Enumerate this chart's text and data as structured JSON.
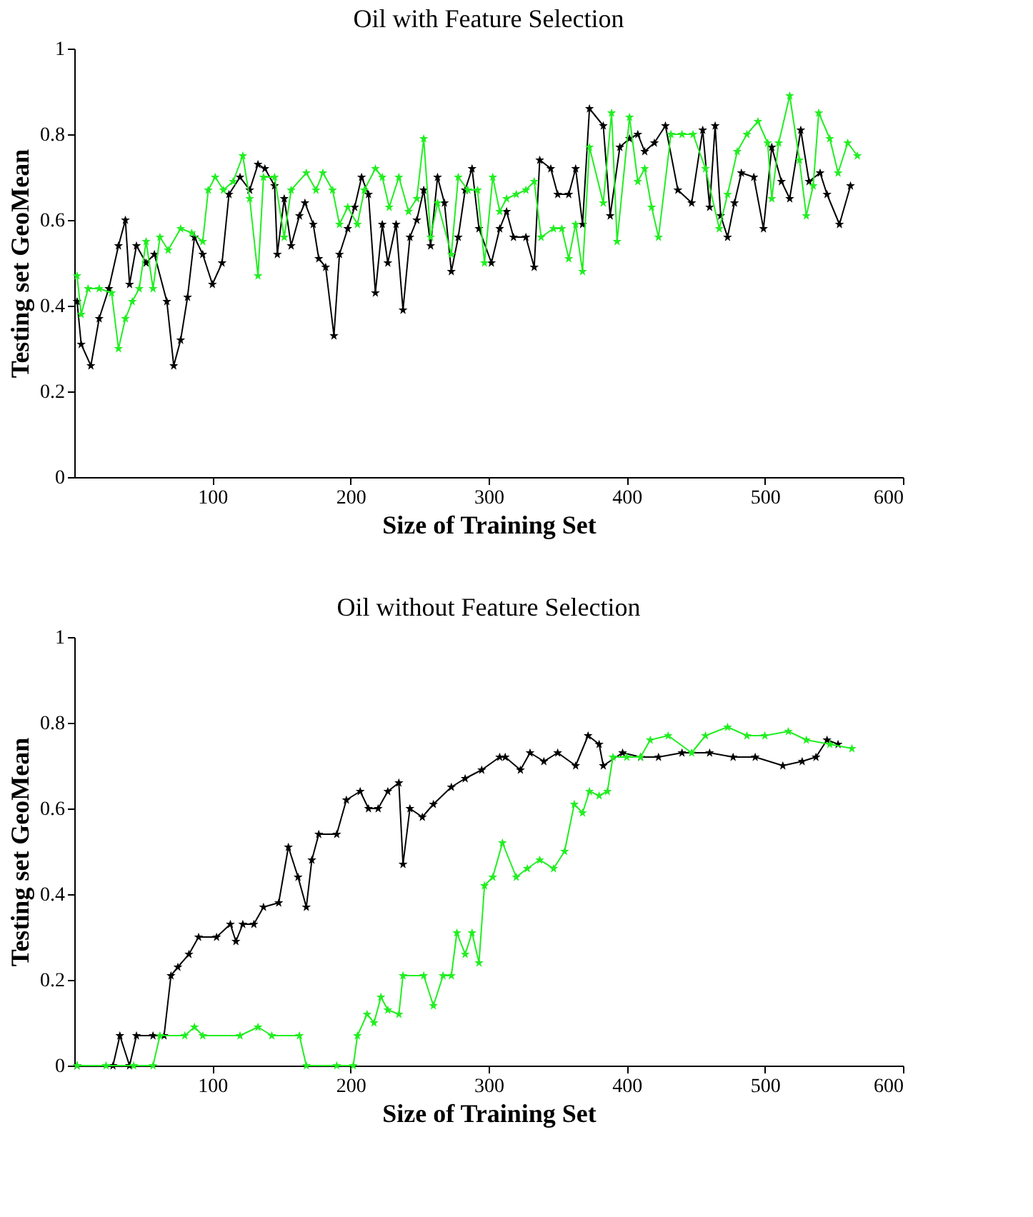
{
  "chart_data": [
    {
      "type": "line",
      "title": "Oil with Feature Selection",
      "xlabel": "Size of Training Set",
      "ylabel": "Testing set GeoMean",
      "xlim": [
        0,
        600
      ],
      "xticks": [
        100,
        200,
        300,
        400,
        500,
        600
      ],
      "ylim": [
        0,
        1
      ],
      "yticks": [
        0,
        0.2,
        0.4,
        0.6,
        0.8,
        1
      ],
      "grid": false,
      "marker": "star",
      "line_style": "solid",
      "series": [
        {
          "color": "#000000",
          "x": [
            2,
            5,
            12,
            18,
            25,
            32,
            37,
            40,
            45,
            52,
            58,
            67,
            72,
            77,
            82,
            87,
            93,
            100,
            107,
            112,
            120,
            127,
            133,
            138,
            145,
            147,
            152,
            157,
            163,
            167,
            173,
            177,
            182,
            188,
            192,
            198,
            203,
            208,
            213,
            218,
            223,
            227,
            233,
            238,
            243,
            248,
            253,
            258,
            263,
            268,
            273,
            278,
            283,
            288,
            293,
            302,
            308,
            313,
            318,
            327,
            333,
            337,
            345,
            350,
            358,
            363,
            368,
            373,
            383,
            388,
            395,
            402,
            408,
            413,
            420,
            428,
            437,
            447,
            455,
            460,
            464,
            468,
            473,
            478,
            483,
            492,
            499,
            505,
            512,
            518,
            526,
            532,
            540,
            545,
            554,
            562
          ],
          "values": [
            0.41,
            0.31,
            0.26,
            0.37,
            0.44,
            0.54,
            0.6,
            0.45,
            0.54,
            0.5,
            0.52,
            0.41,
            0.26,
            0.32,
            0.42,
            0.56,
            0.52,
            0.45,
            0.5,
            0.66,
            0.7,
            0.67,
            0.73,
            0.72,
            0.68,
            0.52,
            0.65,
            0.54,
            0.61,
            0.64,
            0.59,
            0.51,
            0.49,
            0.33,
            0.52,
            0.58,
            0.63,
            0.7,
            0.66,
            0.43,
            0.59,
            0.5,
            0.59,
            0.39,
            0.56,
            0.6,
            0.67,
            0.54,
            0.7,
            0.64,
            0.48,
            0.56,
            0.67,
            0.72,
            0.58,
            0.5,
            0.58,
            0.62,
            0.56,
            0.56,
            0.49,
            0.74,
            0.72,
            0.66,
            0.66,
            0.72,
            0.59,
            0.86,
            0.82,
            0.61,
            0.77,
            0.79,
            0.8,
            0.76,
            0.78,
            0.82,
            0.67,
            0.64,
            0.81,
            0.63,
            0.82,
            0.61,
            0.56,
            0.64,
            0.71,
            0.7,
            0.58,
            0.77,
            0.69,
            0.65,
            0.81,
            0.69,
            0.71,
            0.66,
            0.59,
            0.68
          ]
        },
        {
          "color": "#22ee22",
          "x": [
            2,
            5,
            10,
            18,
            27,
            32,
            37,
            42,
            47,
            52,
            57,
            62,
            68,
            77,
            85,
            93,
            97,
            102,
            108,
            115,
            122,
            127,
            133,
            137,
            145,
            152,
            157,
            168,
            175,
            180,
            187,
            192,
            198,
            205,
            210,
            218,
            223,
            228,
            235,
            242,
            248,
            253,
            258,
            263,
            273,
            278,
            285,
            292,
            297,
            303,
            308,
            313,
            320,
            327,
            333,
            338,
            347,
            353,
            358,
            363,
            368,
            373,
            383,
            389,
            393,
            402,
            408,
            413,
            418,
            423,
            432,
            440,
            448,
            457,
            467,
            473,
            480,
            487,
            495,
            502,
            505,
            510,
            518,
            525,
            530,
            535,
            539,
            547,
            553,
            560,
            567
          ],
          "values": [
            0.47,
            0.38,
            0.44,
            0.44,
            0.43,
            0.3,
            0.37,
            0.41,
            0.44,
            0.55,
            0.44,
            0.56,
            0.53,
            0.58,
            0.57,
            0.55,
            0.67,
            0.7,
            0.67,
            0.69,
            0.75,
            0.65,
            0.47,
            0.7,
            0.7,
            0.56,
            0.67,
            0.71,
            0.67,
            0.71,
            0.67,
            0.59,
            0.63,
            0.59,
            0.67,
            0.72,
            0.7,
            0.63,
            0.7,
            0.62,
            0.65,
            0.79,
            0.56,
            0.64,
            0.52,
            0.7,
            0.67,
            0.67,
            0.5,
            0.7,
            0.62,
            0.65,
            0.66,
            0.67,
            0.69,
            0.56,
            0.58,
            0.58,
            0.51,
            0.59,
            0.48,
            0.77,
            0.64,
            0.85,
            0.55,
            0.84,
            0.69,
            0.72,
            0.63,
            0.56,
            0.8,
            0.8,
            0.8,
            0.72,
            0.58,
            0.66,
            0.76,
            0.8,
            0.83,
            0.78,
            0.65,
            0.78,
            0.89,
            0.74,
            0.61,
            0.68,
            0.85,
            0.79,
            0.71,
            0.78,
            0.75
          ]
        }
      ]
    },
    {
      "type": "line",
      "title": "Oil without Feature Selection",
      "xlabel": "Size of Training Set",
      "ylabel": "Testing set GeoMean",
      "xlim": [
        0,
        600
      ],
      "xticks": [
        100,
        200,
        300,
        400,
        500,
        600
      ],
      "ylim": [
        0,
        1
      ],
      "yticks": [
        0,
        0.2,
        0.4,
        0.6,
        0.8,
        1
      ],
      "grid": false,
      "marker": "star",
      "line_style": "solid",
      "series": [
        {
          "color": "#000000",
          "x": [
            2,
            28,
            33,
            40,
            45,
            57,
            65,
            70,
            75,
            83,
            90,
            103,
            113,
            117,
            122,
            130,
            137,
            148,
            155,
            162,
            168,
            172,
            177,
            190,
            197,
            207,
            213,
            220,
            227,
            235,
            238,
            243,
            252,
            260,
            273,
            283,
            295,
            308,
            312,
            323,
            330,
            340,
            350,
            363,
            372,
            380,
            383,
            397,
            410,
            423,
            440,
            460,
            477,
            493,
            513,
            527,
            537,
            545,
            553
          ],
          "values": [
            0,
            0,
            0.07,
            0,
            0.07,
            0.07,
            0.07,
            0.21,
            0.23,
            0.26,
            0.3,
            0.3,
            0.33,
            0.29,
            0.33,
            0.33,
            0.37,
            0.38,
            0.51,
            0.44,
            0.37,
            0.48,
            0.54,
            0.54,
            0.62,
            0.64,
            0.6,
            0.6,
            0.64,
            0.66,
            0.47,
            0.6,
            0.58,
            0.61,
            0.65,
            0.67,
            0.69,
            0.72,
            0.72,
            0.69,
            0.73,
            0.71,
            0.73,
            0.7,
            0.77,
            0.75,
            0.7,
            0.73,
            0.72,
            0.72,
            0.73,
            0.73,
            0.72,
            0.72,
            0.7,
            0.71,
            0.72,
            0.76,
            0.75
          ]
        },
        {
          "color": "#22ee22",
          "x": [
            2,
            23,
            43,
            57,
            62,
            80,
            87,
            93,
            120,
            133,
            143,
            163,
            168,
            190,
            202,
            205,
            212,
            217,
            222,
            227,
            235,
            238,
            253,
            260,
            267,
            273,
            277,
            283,
            288,
            293,
            297,
            303,
            310,
            320,
            328,
            337,
            347,
            355,
            362,
            368,
            373,
            380,
            386,
            390,
            400,
            410,
            417,
            430,
            447,
            457,
            473,
            487,
            500,
            517,
            530,
            547,
            563
          ],
          "values": [
            0,
            0,
            0,
            0,
            0.07,
            0.07,
            0.09,
            0.07,
            0.07,
            0.09,
            0.07,
            0.07,
            0,
            0,
            0,
            0.07,
            0.12,
            0.1,
            0.16,
            0.13,
            0.12,
            0.21,
            0.21,
            0.14,
            0.21,
            0.21,
            0.31,
            0.26,
            0.31,
            0.24,
            0.42,
            0.44,
            0.52,
            0.44,
            0.46,
            0.48,
            0.46,
            0.5,
            0.61,
            0.59,
            0.64,
            0.63,
            0.64,
            0.72,
            0.72,
            0.72,
            0.76,
            0.77,
            0.73,
            0.77,
            0.79,
            0.77,
            0.77,
            0.78,
            0.76,
            0.75,
            0.74
          ]
        }
      ]
    }
  ]
}
